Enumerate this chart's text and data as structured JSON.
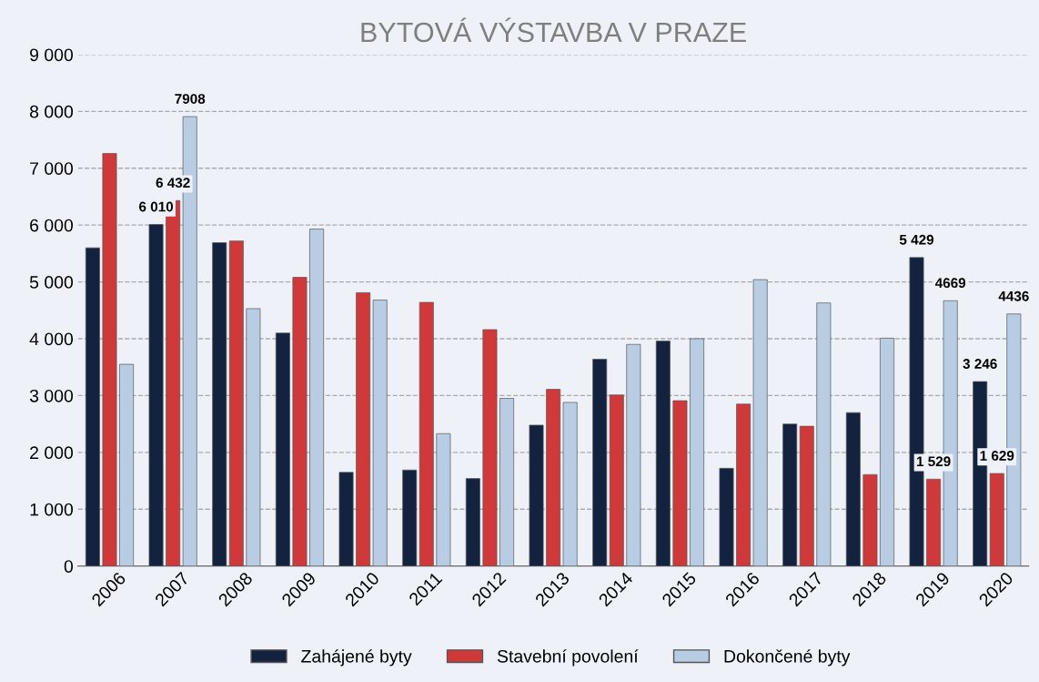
{
  "chart_data": {
    "type": "bar",
    "title": "BYTOVÁ VÝSTAVBA V PRAZE",
    "categories": [
      "2006",
      "2007",
      "2008",
      "2009",
      "2010",
      "2011",
      "2012",
      "2013",
      "2014",
      "2015",
      "2016",
      "2017",
      "2018",
      "2019",
      "2020"
    ],
    "series": [
      {
        "name": "Zahájené byty",
        "color": "#13233f",
        "values": [
          5600,
          6010,
          5690,
          4100,
          1650,
          1690,
          1540,
          2480,
          3640,
          3960,
          1720,
          2500,
          2700,
          5429,
          3246
        ],
        "value_labels": [
          null,
          "6 010",
          null,
          null,
          null,
          null,
          null,
          null,
          null,
          null,
          null,
          null,
          null,
          "5 429",
          "3 246"
        ]
      },
      {
        "name": "Stavební povolení",
        "color": "#d0393a",
        "values": [
          7260,
          6432,
          5720,
          5080,
          4810,
          4640,
          4160,
          3110,
          3010,
          2910,
          2850,
          2460,
          1610,
          1529,
          1629
        ],
        "value_labels": [
          null,
          "6 432",
          null,
          null,
          null,
          null,
          null,
          null,
          null,
          null,
          null,
          null,
          null,
          "1 529",
          "1 629"
        ]
      },
      {
        "name": "Dokončené byty",
        "color": "#b8cce4",
        "values": [
          3550,
          7908,
          4530,
          5930,
          4680,
          2330,
          2950,
          2880,
          3900,
          4000,
          5040,
          4630,
          4010,
          4669,
          4436
        ],
        "value_labels": [
          null,
          "7908",
          null,
          null,
          null,
          null,
          null,
          null,
          null,
          null,
          null,
          null,
          null,
          "4669",
          "4436"
        ]
      }
    ],
    "ylim": [
      0,
      9000
    ],
    "yticks": [
      {
        "value": 0,
        "label": "0"
      },
      {
        "value": 1000,
        "label": "1 000"
      },
      {
        "value": 2000,
        "label": "2 000"
      },
      {
        "value": 3000,
        "label": "3 000"
      },
      {
        "value": 4000,
        "label": "4 000"
      },
      {
        "value": 5000,
        "label": "5 000"
      },
      {
        "value": 6000,
        "label": "6 000"
      },
      {
        "value": 7000,
        "label": "7 000"
      },
      {
        "value": 8000,
        "label": "8 000"
      },
      {
        "value": 9000,
        "label": "9 000"
      }
    ],
    "grid": "y",
    "legend": "bottom"
  }
}
